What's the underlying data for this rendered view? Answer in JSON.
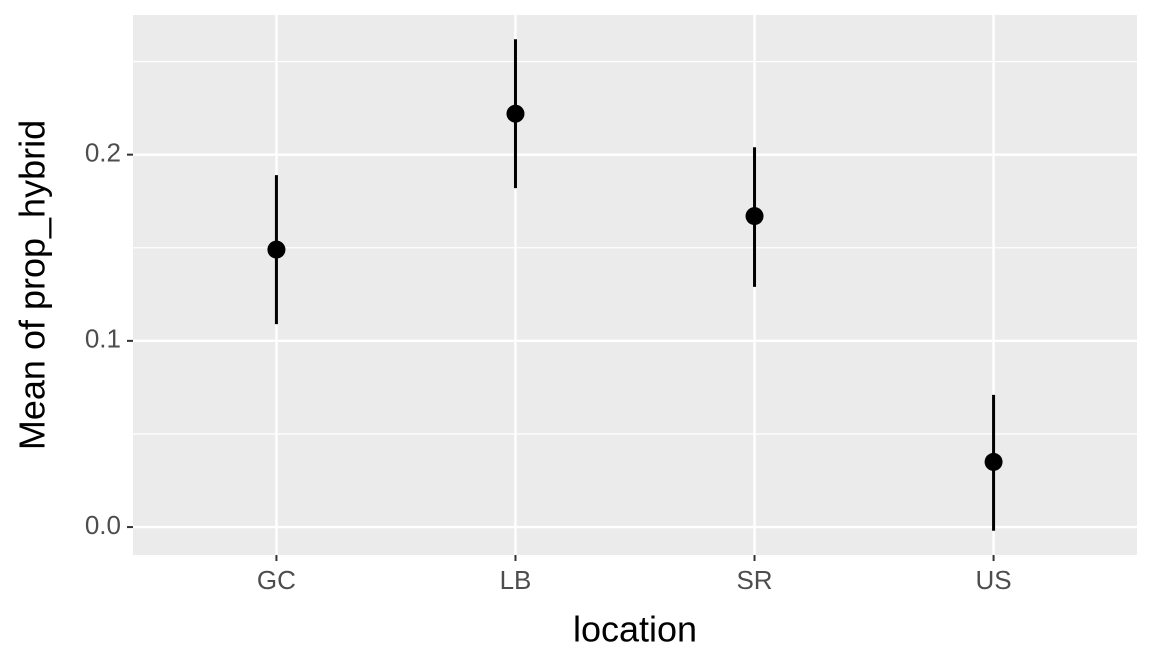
{
  "chart_data": {
    "type": "pointrange",
    "x_label": "location",
    "y_label": "Mean of prop_hybrid",
    "categories": [
      "GC",
      "LB",
      "SR",
      "US"
    ],
    "series": [
      {
        "color": "#000000",
        "values": [
          0.149,
          0.222,
          0.167,
          0.035
        ],
        "lower": [
          0.109,
          0.182,
          0.129,
          -0.002
        ],
        "upper": [
          0.189,
          0.262,
          0.204,
          0.071
        ]
      }
    ],
    "ylim": [
      -0.015,
      0.275
    ],
    "yticks": [
      {
        "value": 0,
        "label": "0.0"
      },
      0.1,
      0.2
    ],
    "minor_yticks": [
      0.05,
      0.15,
      0.25
    ],
    "grid": true
  }
}
